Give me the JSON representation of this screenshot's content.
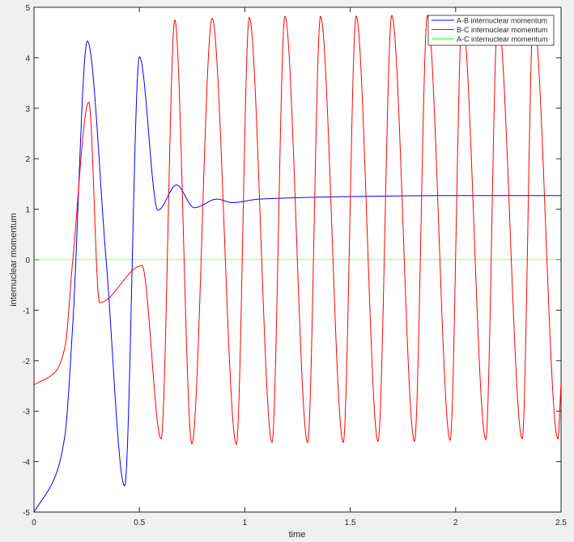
{
  "chart_data": {
    "type": "line",
    "title": "",
    "xlabel": "time",
    "ylabel": "internuclear momentum",
    "xlim": [
      0,
      2.5
    ],
    "ylim": [
      -5,
      5
    ],
    "xticks": [
      0,
      0.5,
      1,
      1.5,
      2,
      2.5
    ],
    "xtick_labels": [
      "0",
      "0.5",
      "1",
      "1.5",
      "2",
      "2.5"
    ],
    "yticks": [
      -5,
      -4,
      -3,
      -2,
      -1,
      0,
      1,
      2,
      3,
      4,
      5
    ],
    "ytick_labels": [
      "-5",
      "-4",
      "-3",
      "-2",
      "-1",
      "0",
      "1",
      "2",
      "3",
      "4",
      "5"
    ],
    "grid": false,
    "legend_position": "top-right",
    "series": [
      {
        "name": "A-B internuclear momentum",
        "color": "#0000ff",
        "x": [
          0,
          0.1,
          0.146,
          0.184,
          0.253,
          0.342,
          0.43,
          0.5,
          0.588,
          0.676,
          0.76,
          0.868,
          0.94,
          1.07,
          1.5,
          2.0,
          2.5
        ],
        "y": [
          -5,
          -4.3,
          -3.5,
          -1.27,
          4.33,
          0,
          -4.48,
          4.02,
          0.98,
          1.48,
          1.03,
          1.2,
          1.13,
          1.2,
          1.25,
          1.27,
          1.27
        ]
      },
      {
        "name": "B-C internuclear momentum",
        "color": "#ff0000",
        "x": [
          0,
          0.1,
          0.146,
          0.184,
          0.26,
          0.311,
          0.512,
          0.603,
          0.668,
          0.749,
          0.845,
          0.96,
          1.021,
          1.129,
          1.19,
          1.298,
          1.359,
          1.467,
          1.528,
          1.632,
          1.697,
          1.805,
          1.866,
          1.974,
          2.031,
          2.143,
          2.2,
          2.316,
          2.369,
          2.485,
          2.5
        ],
        "y": [
          -2.48,
          -2.23,
          -1.75,
          0,
          3.12,
          -0.85,
          -0.12,
          -3.55,
          4.75,
          -3.65,
          4.78,
          -3.66,
          4.8,
          -3.62,
          4.82,
          -3.62,
          4.82,
          -3.62,
          4.83,
          -3.6,
          4.84,
          -3.6,
          4.84,
          -3.58,
          4.84,
          -3.56,
          4.84,
          -3.55,
          4.84,
          -3.55,
          -2.45
        ]
      },
      {
        "name": "A-C internuclear momentum",
        "color": "#00ff00",
        "x": [
          0,
          2.5
        ],
        "y": [
          0,
          0
        ]
      }
    ]
  }
}
